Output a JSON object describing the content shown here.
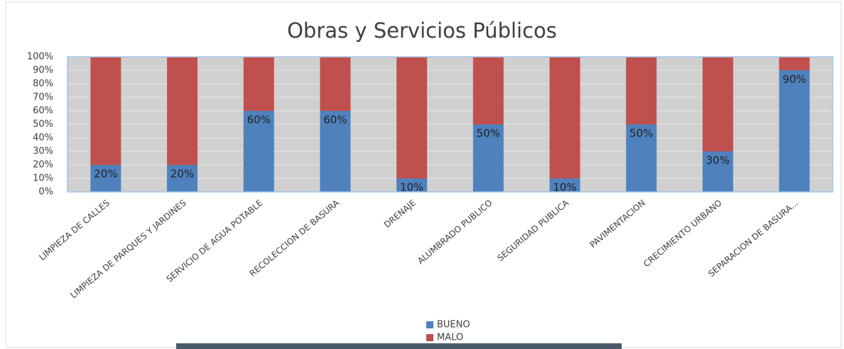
{
  "chart_data": {
    "type": "stacked_bar",
    "title": "Obras y Servicios Públicos",
    "categories": [
      "LIMPIEZA DE CALLES",
      "LIMPIEZA DE PARQUES Y JARDINES",
      "SERVICIO DE AGUA POTABLE",
      "RECOLECCION DE BASURA",
      "DRENAJE",
      "ALUMBRADO PUBLICO",
      "SEGURIDAD PUBLICA",
      "PAVIMENTACION",
      "CRECIMIENTO URBANO",
      "SEPARACION DE BASURA..."
    ],
    "series": [
      {
        "name": "BUENO",
        "color": "#4f81bd",
        "values": [
          20,
          20,
          60,
          60,
          10,
          50,
          10,
          50,
          30,
          90
        ],
        "value_labels": [
          "20%",
          "20%",
          "60%",
          "60%",
          "10%",
          "50%",
          "10%",
          "50%",
          "30%",
          "90%"
        ]
      },
      {
        "name": "MALO",
        "color": "#c0504d",
        "values": [
          80,
          80,
          40,
          40,
          90,
          50,
          90,
          50,
          70,
          10
        ]
      }
    ],
    "ylim": [
      0,
      100
    ],
    "yticks": [
      {
        "value": 0,
        "label": "0%"
      },
      {
        "value": 10,
        "label": "10%"
      },
      {
        "value": 20,
        "label": "20%"
      },
      {
        "value": 30,
        "label": "30%"
      },
      {
        "value": 40,
        "label": "40%"
      },
      {
        "value": 50,
        "label": "50%"
      },
      {
        "value": 60,
        "label": "60%"
      },
      {
        "value": 70,
        "label": "70%"
      },
      {
        "value": 80,
        "label": "80%"
      },
      {
        "value": 90,
        "label": "90%"
      },
      {
        "value": 100,
        "label": "100%"
      }
    ],
    "grid": true,
    "legend": "bottom"
  }
}
